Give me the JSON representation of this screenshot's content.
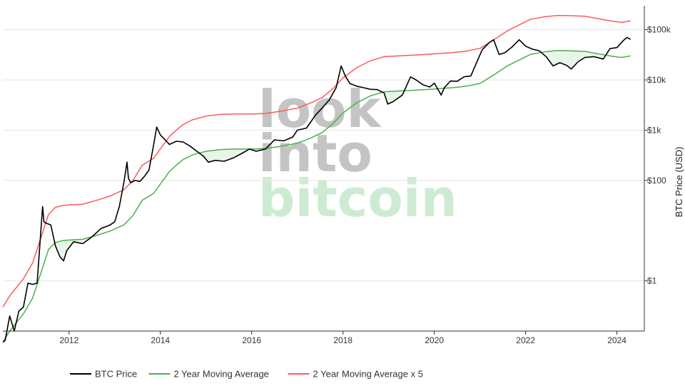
{
  "chart_data": {
    "type": "line",
    "title": "",
    "ylabel": "BTC Price (USD)",
    "yscale": "log",
    "ylim": [
      0.1,
      300000
    ],
    "xlim": [
      2010.55,
      2024.6
    ],
    "x_ticks": [
      2012,
      2014,
      2016,
      2018,
      2020,
      2022,
      2024
    ],
    "y_ticks": [
      {
        "value": 1,
        "label": "$1"
      },
      {
        "value": 100,
        "label": "$100"
      },
      {
        "value": 1000,
        "label": "$1k"
      },
      {
        "value": 10000,
        "label": "$10k"
      },
      {
        "value": 100000,
        "label": "$100k"
      }
    ],
    "grid": "horizontal",
    "legend": "bottom",
    "watermark": [
      "look",
      "into",
      "bitcoin"
    ],
    "series": [
      {
        "name": "BTC Price",
        "color": "#000000",
        "x": [
          2010.55,
          2010.6,
          2010.7,
          2010.8,
          2010.9,
          2011.0,
          2011.1,
          2011.2,
          2011.3,
          2011.42,
          2011.45,
          2011.5,
          2011.6,
          2011.7,
          2011.8,
          2011.88,
          2011.95,
          2012.1,
          2012.3,
          2012.5,
          2012.7,
          2012.9,
          2013.0,
          2013.1,
          2013.2,
          2013.27,
          2013.3,
          2013.35,
          2013.45,
          2013.55,
          2013.65,
          2013.75,
          2013.85,
          2013.92,
          2014.0,
          2014.1,
          2014.2,
          2014.35,
          2014.5,
          2014.65,
          2014.8,
          2014.95,
          2015.05,
          2015.2,
          2015.4,
          2015.6,
          2015.8,
          2015.95,
          2016.1,
          2016.3,
          2016.5,
          2016.7,
          2016.9,
          2017.0,
          2017.2,
          2017.4,
          2017.55,
          2017.7,
          2017.85,
          2017.96,
          2018.05,
          2018.15,
          2018.3,
          2018.45,
          2018.6,
          2018.75,
          2018.9,
          2018.98,
          2019.1,
          2019.3,
          2019.48,
          2019.6,
          2019.75,
          2019.9,
          2020.0,
          2020.15,
          2020.22,
          2020.35,
          2020.5,
          2020.65,
          2020.8,
          2020.95,
          2021.05,
          2021.2,
          2021.3,
          2021.42,
          2021.55,
          2021.7,
          2021.86,
          2022.0,
          2022.15,
          2022.3,
          2022.45,
          2022.6,
          2022.75,
          2022.9,
          2023.0,
          2023.15,
          2023.3,
          2023.5,
          2023.7,
          2023.85,
          2024.0,
          2024.15,
          2024.22,
          2024.3
        ],
        "y": [
          0.06,
          0.065,
          0.2,
          0.1,
          0.25,
          0.3,
          0.9,
          0.85,
          0.9,
          30,
          15,
          14,
          13,
          5,
          3,
          2.5,
          4,
          6,
          5.5,
          7.5,
          11,
          13,
          15,
          30,
          90,
          230,
          110,
          90,
          100,
          95,
          120,
          160,
          500,
          1150,
          800,
          650,
          520,
          600,
          580,
          480,
          380,
          300,
          230,
          250,
          240,
          280,
          350,
          420,
          380,
          420,
          640,
          610,
          730,
          1000,
          1100,
          2000,
          2800,
          4000,
          7000,
          19000,
          12000,
          8500,
          7500,
          7000,
          6500,
          6400,
          5500,
          3300,
          3700,
          5000,
          11500,
          10000,
          8000,
          7200,
          8600,
          5000,
          7000,
          9500,
          9400,
          11500,
          12000,
          25000,
          40000,
          55000,
          63000,
          32000,
          35000,
          45000,
          63000,
          47000,
          41000,
          38000,
          29000,
          19000,
          22000,
          19500,
          16500,
          23000,
          28000,
          29000,
          26000,
          42000,
          44000,
          62000,
          70000,
          64000
        ]
      },
      {
        "name": "2 Year Moving Average",
        "color": "#4caf50",
        "x": [
          2010.55,
          2010.7,
          2010.9,
          2011.0,
          2011.2,
          2011.4,
          2011.55,
          2011.7,
          2011.85,
          2012.0,
          2012.3,
          2012.6,
          2012.9,
          2013.2,
          2013.4,
          2013.6,
          2013.85,
          2014.0,
          2014.2,
          2014.35,
          2014.5,
          2014.7,
          2015.0,
          2015.3,
          2015.6,
          2016.0,
          2016.3,
          2016.6,
          2017.0,
          2017.3,
          2017.55,
          2017.8,
          2018.0,
          2018.3,
          2018.6,
          2018.9,
          2019.2,
          2019.5,
          2019.8,
          2020.1,
          2020.4,
          2020.7,
          2021.0,
          2021.3,
          2021.6,
          2021.9,
          2022.1,
          2022.4,
          2022.7,
          2023.0,
          2023.3,
          2023.6,
          2023.9,
          2024.1,
          2024.3
        ],
        "y": [
          0.06,
          0.1,
          0.17,
          0.22,
          0.45,
          1.6,
          4.2,
          5.8,
          6.3,
          6.5,
          6.7,
          8.0,
          9.8,
          13,
          20,
          40,
          55,
          85,
          150,
          200,
          260,
          320,
          380,
          410,
          420,
          420,
          430,
          470,
          550,
          700,
          900,
          1400,
          2200,
          3500,
          4800,
          5800,
          6000,
          6200,
          6400,
          6700,
          7000,
          7500,
          8500,
          12500,
          19000,
          26000,
          32000,
          36000,
          38500,
          38000,
          37000,
          33000,
          29500,
          28000,
          30000
        ]
      },
      {
        "name": "2 Year Moving Average x 5",
        "color": "#ff5a5a",
        "x": [
          2010.55,
          2010.7,
          2010.9,
          2011.0,
          2011.2,
          2011.4,
          2011.55,
          2011.7,
          2011.85,
          2012.0,
          2012.3,
          2012.6,
          2012.9,
          2013.2,
          2013.4,
          2013.6,
          2013.85,
          2014.0,
          2014.2,
          2014.35,
          2014.5,
          2014.7,
          2015.0,
          2015.3,
          2015.6,
          2016.0,
          2016.3,
          2016.6,
          2017.0,
          2017.3,
          2017.55,
          2017.8,
          2018.0,
          2018.3,
          2018.6,
          2018.9,
          2019.2,
          2019.5,
          2019.8,
          2020.1,
          2020.4,
          2020.7,
          2021.0,
          2021.3,
          2021.6,
          2021.9,
          2022.1,
          2022.4,
          2022.7,
          2023.0,
          2023.3,
          2023.6,
          2023.9,
          2024.1,
          2024.3
        ],
        "y": [
          0.3,
          0.5,
          0.85,
          1.1,
          2.25,
          8,
          21,
          29,
          31.5,
          32.5,
          33.5,
          40,
          49,
          65,
          100,
          200,
          275,
          425,
          750,
          1000,
          1300,
          1600,
          1900,
          2050,
          2100,
          2100,
          2150,
          2350,
          2750,
          3500,
          4500,
          7000,
          11000,
          17500,
          24000,
          29000,
          30000,
          31000,
          32000,
          33500,
          35000,
          37500,
          42500,
          62500,
          95000,
          130000,
          160000,
          180000,
          192500,
          190000,
          185000,
          165000,
          147500,
          140000,
          150000
        ]
      }
    ]
  }
}
